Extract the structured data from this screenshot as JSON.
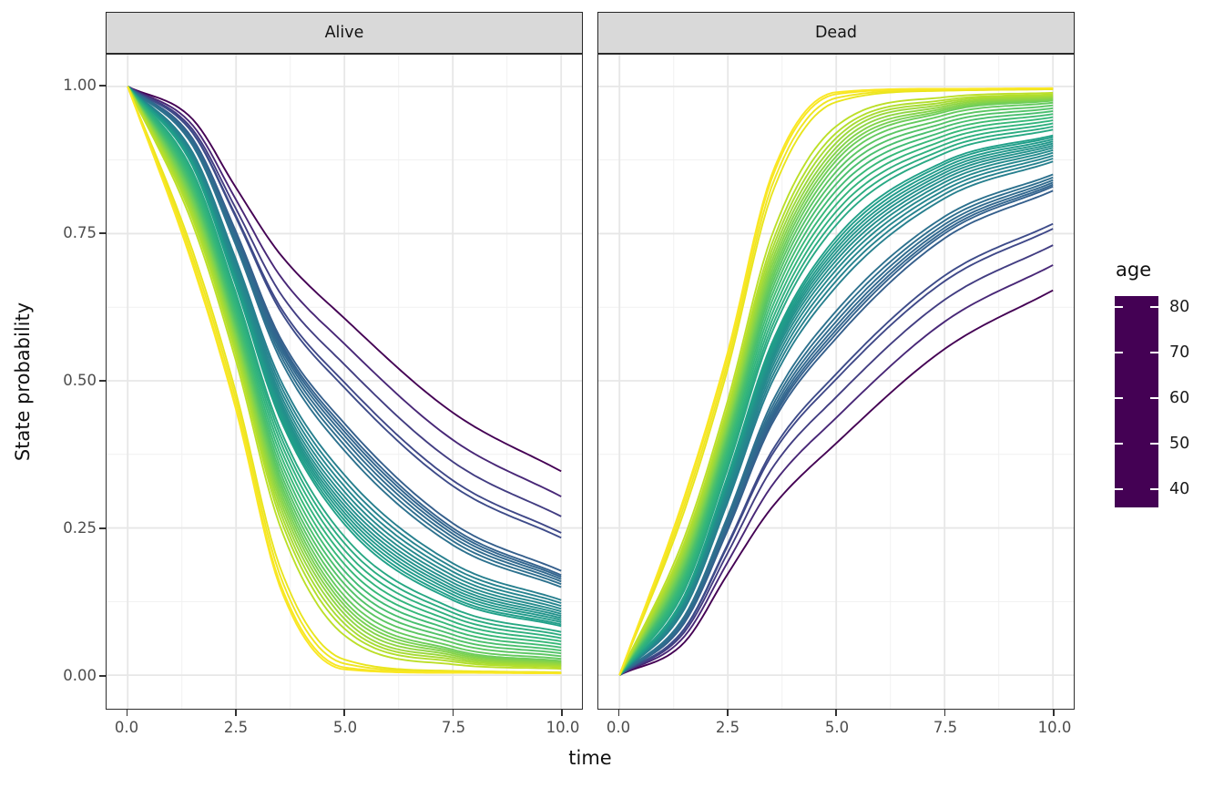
{
  "facets": [
    {
      "label": "Alive"
    },
    {
      "label": "Dead"
    }
  ],
  "x_axis": {
    "title": "time",
    "ticks": [
      "0.0",
      "2.5",
      "5.0",
      "7.5",
      "10.0"
    ],
    "values": [
      0,
      2.5,
      5,
      7.5,
      10
    ]
  },
  "y_axis": {
    "title": "State probability",
    "ticks": [
      "1.00",
      "0.75",
      "0.50",
      "0.25",
      "0.00"
    ],
    "values": [
      1,
      0.75,
      0.5,
      0.25,
      0
    ]
  },
  "legend": {
    "title": "age",
    "tick_labels": [
      "80",
      "70",
      "60",
      "50",
      "40"
    ],
    "tick_ages": [
      80,
      70,
      60,
      50,
      40
    ],
    "age_min": 36,
    "age_max": 82.4
  },
  "colors": {
    "viridis": [
      "#440154",
      "#482878",
      "#3E4A89",
      "#31688E",
      "#26828E",
      "#1F9E89",
      "#35B779",
      "#6DCD59",
      "#B4DE2C",
      "#DDE318",
      "#FDE725"
    ],
    "strip_fill": "#D9D9D9",
    "strip_border": "#262626",
    "panel_border": "#2E2E2E",
    "grid_major": "#E7E7E7",
    "grid_minor": "#F1F1F1",
    "tick_label": "#4D4D4D",
    "title_text": "#111111",
    "tick_mark": "#333333"
  },
  "chart_data": {
    "type": "line",
    "facet_panels": [
      "Alive",
      "Dead"
    ],
    "x": {
      "label": "time",
      "range": [
        0,
        10
      ],
      "major_breaks": [
        0,
        2.5,
        5,
        7.5,
        10
      ],
      "minor_breaks": [
        1.25,
        3.75,
        6.25,
        8.75
      ]
    },
    "y": {
      "label": "State probability",
      "range": [
        0,
        1
      ],
      "major_breaks": [
        0,
        0.25,
        0.5,
        0.75,
        1
      ],
      "minor_breaks": [
        0.125,
        0.375,
        0.625,
        0.875
      ]
    },
    "color_by": {
      "label": "age",
      "domain": [
        36,
        82.4
      ],
      "scale": "viridis"
    },
    "relation": "P(Dead) = 1 - P(Alive); all curves start at P(Alive)=1, P(Dead)=0 at time 0",
    "ages": [
      36,
      40.5,
      43.5,
      45,
      45.5,
      48.5,
      49,
      49.5,
      50,
      50.5,
      51,
      51.5,
      54,
      54.5,
      55,
      55.5,
      56,
      56.5,
      57,
      57.5,
      58,
      58.5,
      59,
      59.5,
      61,
      61.75,
      62.5,
      63.25,
      64,
      64.75,
      65.5,
      66.25,
      67,
      67.75,
      68.5,
      69.25,
      70,
      70.75,
      71.5,
      72.25,
      73,
      74,
      79.5,
      80.5,
      81.5,
      82
    ],
    "anchor_times": [
      0,
      1.5,
      2.5,
      3.5,
      5,
      7.5,
      10
    ],
    "anchor_profiles": [
      {
        "w": 0.0,
        "alive": [
          1,
          0.945,
          0.83,
          0.72,
          0.61,
          0.45,
          0.35
        ]
      },
      {
        "w": 0.15,
        "alive": [
          1,
          0.93,
          0.8,
          0.665,
          0.545,
          0.38,
          0.285
        ]
      },
      {
        "w": 0.28,
        "alive": [
          1,
          0.91,
          0.75,
          0.57,
          0.42,
          0.25,
          0.17
        ]
      },
      {
        "w": 0.5,
        "alive": [
          1,
          0.865,
          0.66,
          0.44,
          0.26,
          0.13,
          0.085
        ]
      },
      {
        "w": 0.7,
        "alive": [
          1,
          0.81,
          0.585,
          0.33,
          0.13,
          0.045,
          0.025
        ]
      },
      {
        "w": 0.85,
        "alive": [
          1,
          0.755,
          0.52,
          0.24,
          0.055,
          0.013,
          0.008
        ]
      },
      {
        "w": 1.0,
        "alive": [
          1,
          0.7,
          0.455,
          0.155,
          0.01,
          0.004,
          0.003
        ]
      }
    ],
    "jitter": 0.02,
    "line_width": 1.9
  }
}
